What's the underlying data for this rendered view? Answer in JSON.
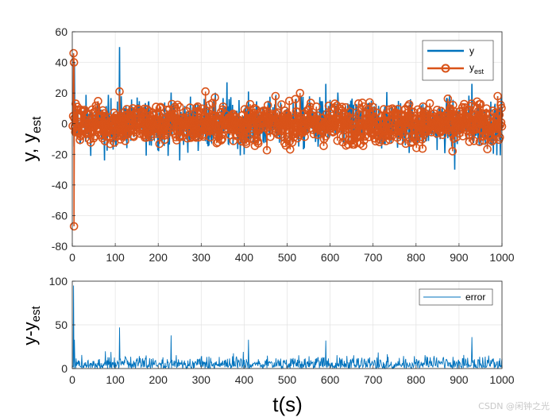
{
  "chart_data": [
    {
      "type": "line",
      "id": "top",
      "xlim": [
        0,
        1000
      ],
      "ylim": [
        -80,
        60
      ],
      "xticks": [
        0,
        100,
        200,
        300,
        400,
        500,
        600,
        700,
        800,
        900,
        1000
      ],
      "yticks": [
        -80,
        -60,
        -40,
        -20,
        0,
        20,
        40,
        60
      ],
      "xtick_labels": [
        "0",
        "100",
        "200",
        "300",
        "400",
        "500",
        "600",
        "700",
        "800",
        "900",
        "1000"
      ],
      "ytick_labels": [
        "-80",
        "-60",
        "-40",
        "-20",
        "0",
        "20",
        "40",
        "60"
      ],
      "ylabel": {
        "main": "y, y",
        "sub": "est"
      },
      "grid": true,
      "legend": {
        "position": "top-right",
        "entries": [
          {
            "main": "y",
            "sub": ""
          },
          {
            "main": "y",
            "sub": "est"
          }
        ]
      },
      "series": [
        {
          "name": "y",
          "color": "#0072BD",
          "style": "line",
          "typical_range": [
            -15,
            15
          ],
          "spikes": [
            {
              "x": 110,
              "y": 50
            },
            {
              "x": 5,
              "y": 40
            },
            {
              "x": 4,
              "y": -15
            },
            {
              "x": 360,
              "y": 27
            },
            {
              "x": 590,
              "y": 26
            },
            {
              "x": 890,
              "y": -30
            },
            {
              "x": 250,
              "y": -24
            },
            {
              "x": 75,
              "y": -24
            },
            {
              "x": 930,
              "y": 26
            }
          ]
        },
        {
          "name": "y_est",
          "color": "#D95319",
          "style": "line-circle-markers",
          "typical_range": [
            -12,
            12
          ],
          "spikes": [
            {
              "x": 3,
              "y": 46
            },
            {
              "x": 4,
              "y": 40
            },
            {
              "x": 4,
              "y": -67
            },
            {
              "x": 110,
              "y": 21
            },
            {
              "x": 310,
              "y": 21
            },
            {
              "x": 530,
              "y": 20
            },
            {
              "x": 885,
              "y": -18
            }
          ]
        }
      ]
    },
    {
      "type": "line",
      "id": "bottom",
      "xlim": [
        0,
        1000
      ],
      "ylim": [
        0,
        100
      ],
      "xticks": [
        0,
        100,
        200,
        300,
        400,
        500,
        600,
        700,
        800,
        900,
        1000
      ],
      "yticks": [
        0,
        50,
        100
      ],
      "xtick_labels": [
        "0",
        "100",
        "200",
        "300",
        "400",
        "500",
        "600",
        "700",
        "800",
        "900",
        "1000"
      ],
      "ytick_labels": [
        "0",
        "50",
        "100"
      ],
      "ylabel": {
        "main": "y-y",
        "sub": "est"
      },
      "xlabel": "t(s)",
      "grid": true,
      "legend": {
        "position": "top-right",
        "entries": [
          {
            "main": "error",
            "sub": ""
          }
        ]
      },
      "series": [
        {
          "name": "error",
          "color": "#0072BD",
          "style": "line",
          "typical_range": [
            0,
            20
          ],
          "spikes": [
            {
              "x": 3,
              "y": 95
            },
            {
              "x": 110,
              "y": 47
            },
            {
              "x": 5,
              "y": 33
            },
            {
              "x": 230,
              "y": 38
            },
            {
              "x": 410,
              "y": 33
            },
            {
              "x": 590,
              "y": 32
            },
            {
              "x": 930,
              "y": 36
            }
          ]
        }
      ]
    }
  ],
  "watermark": "CSDN @闲钟之光"
}
